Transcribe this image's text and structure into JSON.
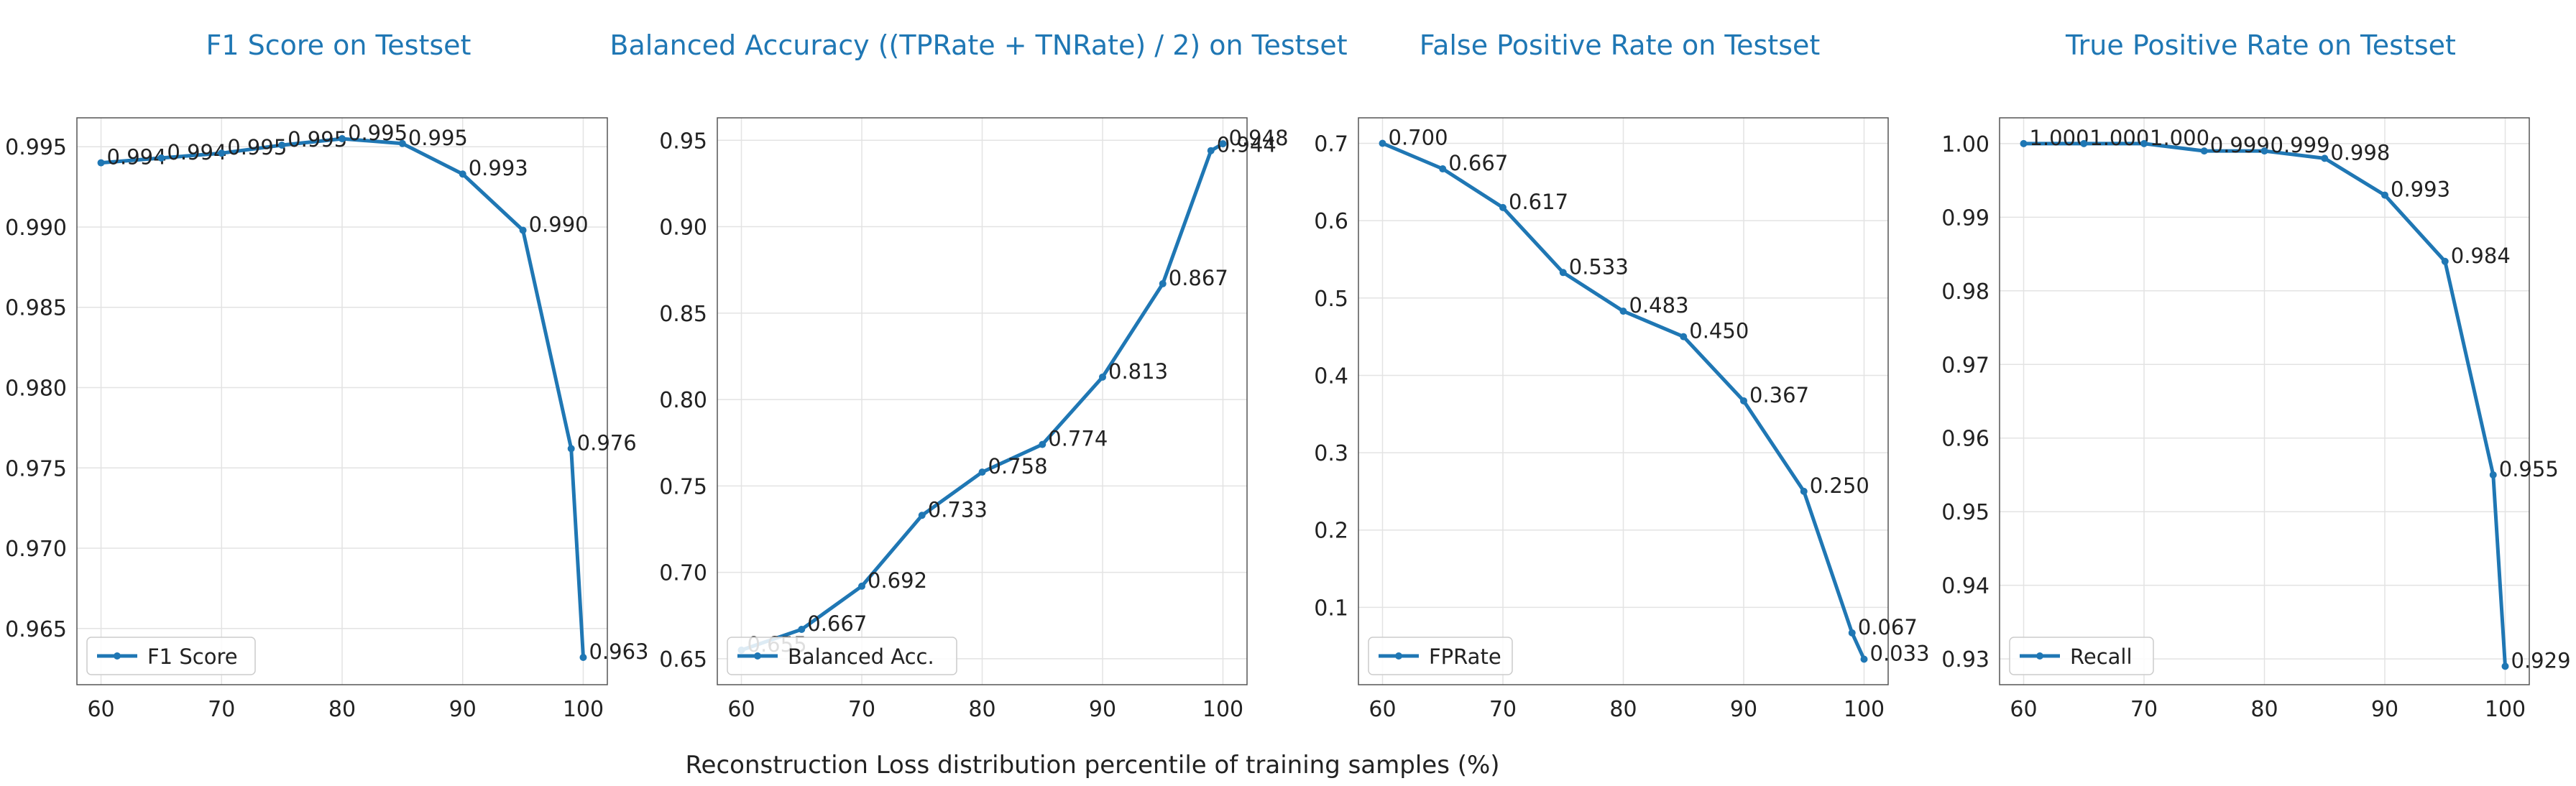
{
  "figure": {
    "xlabel": "Reconstruction Loss distribution percentile of training samples (%)",
    "title_color": "#1f77b4",
    "line_color": "#1f77b4"
  },
  "chart_data": [
    {
      "type": "line",
      "title": "F1 Score on Testset",
      "x": [
        60,
        65,
        70,
        75,
        80,
        85,
        90,
        95,
        99,
        100
      ],
      "series": [
        {
          "name": "F1 Score",
          "values": [
            0.994,
            0.9943,
            0.9946,
            0.9951,
            0.9955,
            0.9952,
            0.9933,
            0.9898,
            0.9762,
            0.9632
          ],
          "labels": [
            "0.994",
            "0.994",
            "0.995",
            "0.995",
            "0.995",
            "0.995",
            "0.993",
            "0.990",
            "0.976",
            "0.963"
          ]
        }
      ],
      "xticks": [
        "60",
        "70",
        "80",
        "90",
        "100"
      ],
      "yticks": [
        "0.965",
        "0.970",
        "0.975",
        "0.980",
        "0.985",
        "0.990",
        "0.995"
      ],
      "xlim": [
        58,
        102
      ],
      "ylim": [
        0.9615,
        0.9968
      ],
      "grid": true,
      "legend": "lower-left"
    },
    {
      "type": "line",
      "title": "Balanced Accuracy ((TPRate + TNRate) / 2) on Testset",
      "x": [
        60,
        65,
        70,
        75,
        80,
        85,
        90,
        95,
        99,
        100
      ],
      "series": [
        {
          "name": "Balanced Acc.",
          "values": [
            0.655,
            0.667,
            0.692,
            0.733,
            0.758,
            0.774,
            0.813,
            0.867,
            0.944,
            0.948
          ],
          "labels": [
            "0.655",
            "0.667",
            "0.692",
            "0.733",
            "0.758",
            "0.774",
            "0.813",
            "0.867",
            "0.944",
            "0.948"
          ]
        }
      ],
      "xticks": [
        "60",
        "70",
        "80",
        "90",
        "100"
      ],
      "yticks": [
        "0.65",
        "0.70",
        "0.75",
        "0.80",
        "0.85",
        "0.90",
        "0.95"
      ],
      "xlim": [
        58,
        102
      ],
      "ylim": [
        0.635,
        0.963
      ],
      "grid": true,
      "legend": "lower-left"
    },
    {
      "type": "line",
      "title": "False Positive Rate on Testset",
      "x": [
        60,
        65,
        70,
        75,
        80,
        85,
        90,
        95,
        99,
        100
      ],
      "series": [
        {
          "name": "FPRate",
          "values": [
            0.7,
            0.667,
            0.617,
            0.533,
            0.483,
            0.45,
            0.367,
            0.25,
            0.067,
            0.033
          ],
          "labels": [
            "0.700",
            "0.667",
            "0.617",
            "0.533",
            "0.483",
            "0.450",
            "0.367",
            "0.250",
            "0.067",
            "0.033"
          ]
        }
      ],
      "xticks": [
        "60",
        "70",
        "80",
        "90",
        "100"
      ],
      "yticks": [
        "0.1",
        "0.2",
        "0.3",
        "0.4",
        "0.5",
        "0.6",
        "0.7"
      ],
      "xlim": [
        58,
        102
      ],
      "ylim": [
        0.0,
        0.733
      ],
      "grid": true,
      "legend": "lower-left"
    },
    {
      "type": "line",
      "title": "True Positive Rate on Testset",
      "x": [
        60,
        65,
        70,
        75,
        80,
        85,
        90,
        95,
        99,
        100
      ],
      "series": [
        {
          "name": "Recall",
          "values": [
            1.0,
            1.0,
            1.0,
            0.999,
            0.999,
            0.998,
            0.993,
            0.984,
            0.955,
            0.929
          ],
          "labels": [
            "1.000",
            "1.000",
            "1.000",
            "0.999",
            "0.999",
            "0.998",
            "0.993",
            "0.984",
            "0.955",
            "0.929"
          ]
        }
      ],
      "xticks": [
        "60",
        "70",
        "80",
        "90",
        "100"
      ],
      "yticks": [
        "0.93",
        "0.94",
        "0.95",
        "0.96",
        "0.97",
        "0.98",
        "0.99",
        "1.00"
      ],
      "xlim": [
        58,
        102
      ],
      "ylim": [
        0.9265,
        1.0035
      ],
      "grid": true,
      "legend": "lower-left"
    }
  ]
}
